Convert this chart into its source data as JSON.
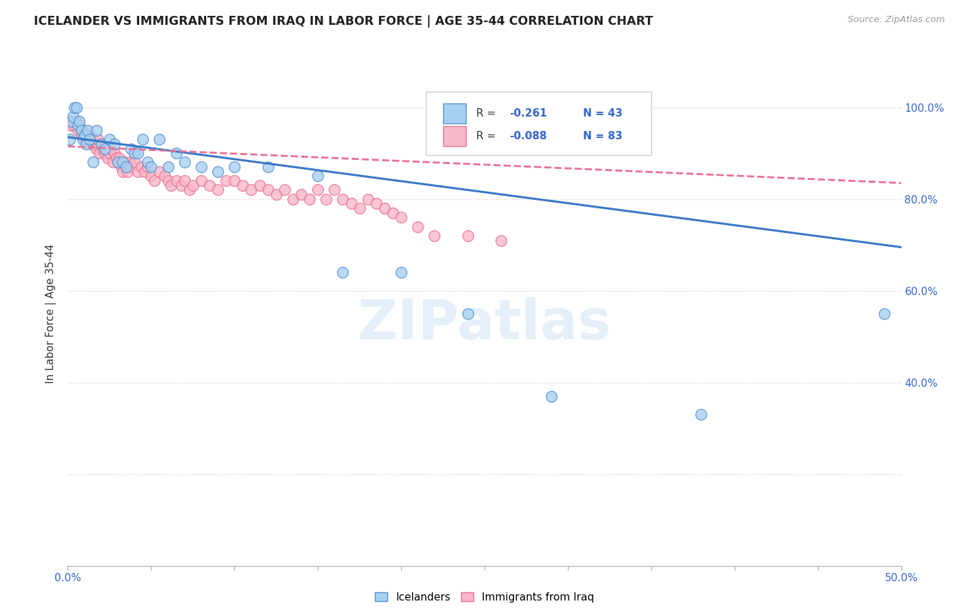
{
  "title": "ICELANDER VS IMMIGRANTS FROM IRAQ IN LABOR FORCE | AGE 35-44 CORRELATION CHART",
  "source": "Source: ZipAtlas.com",
  "ylabel": "In Labor Force | Age 35-44",
  "xlim": [
    0.0,
    0.5
  ],
  "ylim": [
    0.0,
    1.1
  ],
  "xtick_vals": [
    0.0,
    0.05,
    0.1,
    0.15,
    0.2,
    0.25,
    0.3,
    0.35,
    0.4,
    0.45,
    0.5
  ],
  "xtick_labels": [
    "0.0%",
    "",
    "",
    "",
    "",
    "",
    "",
    "",
    "",
    "",
    "50.0%"
  ],
  "ytick_vals": [
    0.0,
    0.2,
    0.4,
    0.6,
    0.8,
    1.0
  ],
  "right_ytick_labels": [
    "",
    "",
    "40.0%",
    "60.0%",
    "80.0%",
    "100.0%"
  ],
  "R_blue": -0.261,
  "N_blue": 43,
  "R_pink": -0.088,
  "N_pink": 83,
  "blue_fill": "#a8d0f0",
  "blue_edge": "#5590d0",
  "pink_fill": "#f8b8c8",
  "pink_edge": "#e87090",
  "blue_line_color": "#3878c8",
  "pink_line_color": "#e87090",
  "watermark": "ZIPatlas",
  "blue_scatter_x": [
    0.001,
    0.002,
    0.003,
    0.004,
    0.005,
    0.006,
    0.007,
    0.008,
    0.009,
    0.01,
    0.011,
    0.012,
    0.013,
    0.015,
    0.017,
    0.02,
    0.022,
    0.025,
    0.028,
    0.03,
    0.033,
    0.035,
    0.038,
    0.04,
    0.042,
    0.045,
    0.048,
    0.05,
    0.055,
    0.06,
    0.065,
    0.07,
    0.08,
    0.09,
    0.1,
    0.12,
    0.15,
    0.165,
    0.2,
    0.24,
    0.29,
    0.38,
    0.49
  ],
  "blue_scatter_y": [
    0.93,
    0.97,
    0.98,
    1.0,
    1.0,
    0.96,
    0.97,
    0.95,
    0.93,
    0.94,
    0.92,
    0.95,
    0.93,
    0.88,
    0.95,
    0.92,
    0.91,
    0.93,
    0.92,
    0.88,
    0.88,
    0.87,
    0.91,
    0.9,
    0.9,
    0.93,
    0.88,
    0.87,
    0.93,
    0.87,
    0.9,
    0.88,
    0.87,
    0.86,
    0.87,
    0.87,
    0.85,
    0.64,
    0.64,
    0.55,
    0.37,
    0.33,
    0.55
  ],
  "pink_scatter_x": [
    0.001,
    0.002,
    0.003,
    0.004,
    0.005,
    0.006,
    0.007,
    0.008,
    0.009,
    0.01,
    0.011,
    0.012,
    0.013,
    0.014,
    0.015,
    0.016,
    0.017,
    0.018,
    0.019,
    0.02,
    0.021,
    0.022,
    0.023,
    0.024,
    0.025,
    0.026,
    0.027,
    0.028,
    0.029,
    0.03,
    0.031,
    0.032,
    0.033,
    0.034,
    0.035,
    0.036,
    0.037,
    0.038,
    0.04,
    0.042,
    0.044,
    0.046,
    0.048,
    0.05,
    0.052,
    0.055,
    0.058,
    0.06,
    0.062,
    0.065,
    0.068,
    0.07,
    0.073,
    0.075,
    0.08,
    0.085,
    0.09,
    0.095,
    0.1,
    0.105,
    0.11,
    0.115,
    0.12,
    0.125,
    0.13,
    0.135,
    0.14,
    0.145,
    0.15,
    0.155,
    0.16,
    0.165,
    0.17,
    0.175,
    0.18,
    0.185,
    0.19,
    0.195,
    0.2,
    0.21,
    0.22,
    0.24,
    0.26
  ],
  "pink_scatter_y": [
    0.97,
    0.96,
    0.97,
    0.96,
    0.97,
    0.95,
    0.96,
    0.94,
    0.95,
    0.93,
    0.94,
    0.93,
    0.94,
    0.92,
    0.93,
    0.92,
    0.91,
    0.93,
    0.9,
    0.92,
    0.91,
    0.9,
    0.91,
    0.89,
    0.9,
    0.91,
    0.88,
    0.9,
    0.89,
    0.88,
    0.89,
    0.87,
    0.86,
    0.88,
    0.87,
    0.86,
    0.88,
    0.87,
    0.88,
    0.86,
    0.87,
    0.86,
    0.87,
    0.85,
    0.84,
    0.86,
    0.85,
    0.84,
    0.83,
    0.84,
    0.83,
    0.84,
    0.82,
    0.83,
    0.84,
    0.83,
    0.82,
    0.84,
    0.84,
    0.83,
    0.82,
    0.83,
    0.82,
    0.81,
    0.82,
    0.8,
    0.81,
    0.8,
    0.82,
    0.8,
    0.82,
    0.8,
    0.79,
    0.78,
    0.8,
    0.79,
    0.78,
    0.77,
    0.76,
    0.74,
    0.72,
    0.72,
    0.71
  ],
  "blue_line_x0": 0.0,
  "blue_line_x1": 0.5,
  "blue_line_y0": 0.935,
  "blue_line_y1": 0.695,
  "pink_line_x0": 0.0,
  "pink_line_x1": 0.5,
  "pink_line_y0": 0.915,
  "pink_line_y1": 0.835
}
